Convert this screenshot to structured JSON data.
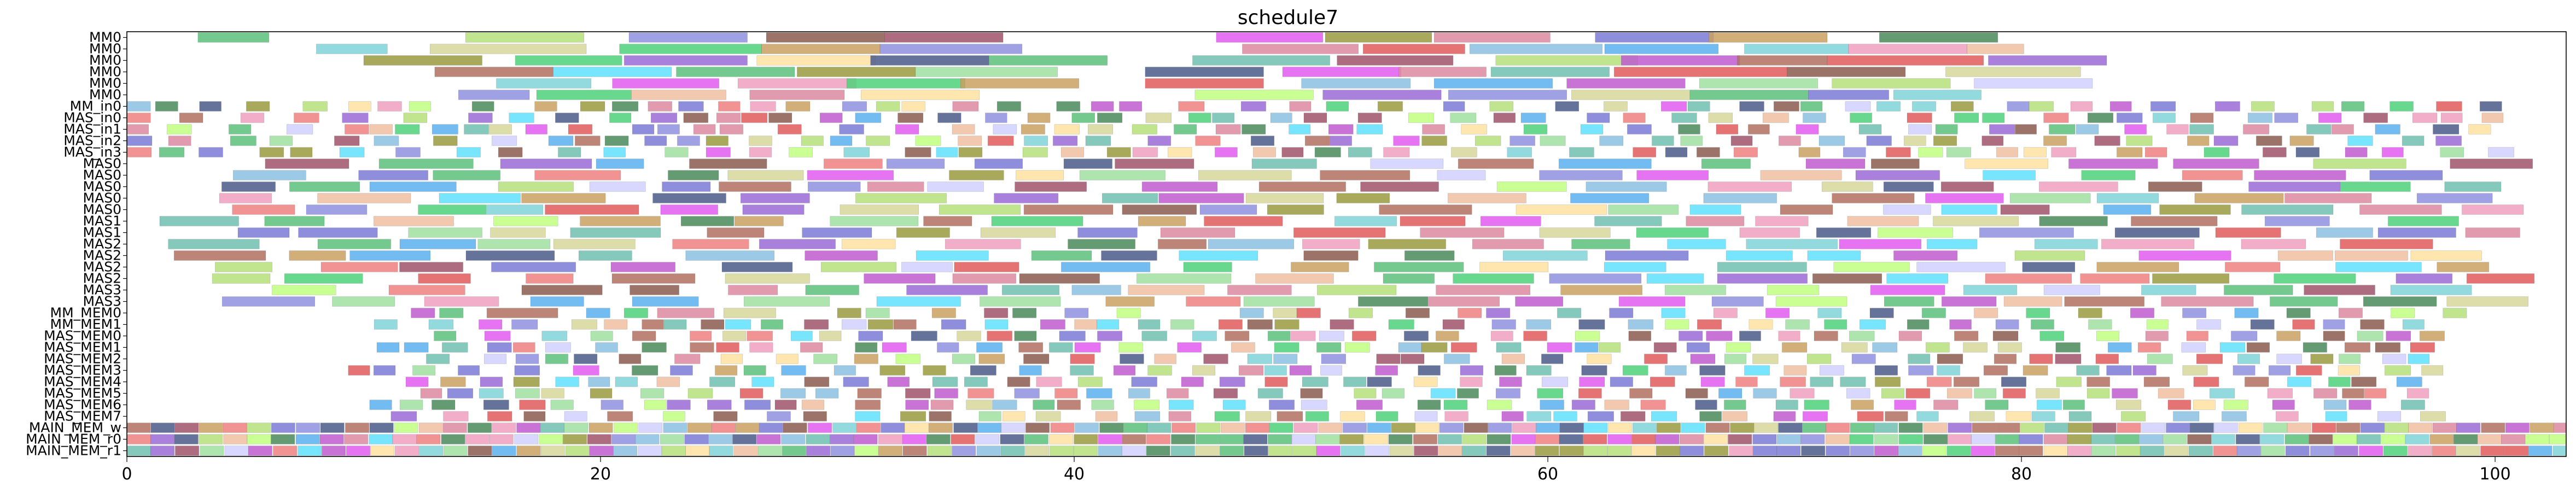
{
  "chart_data": {
    "type": "gantt",
    "title": "schedule7",
    "xlabel": "",
    "ylabel": "",
    "xlim": [
      0,
      103
    ],
    "x_ticks": [
      0,
      20,
      40,
      60,
      80,
      100
    ],
    "grid": false,
    "rows": [
      "MM0",
      "MM0",
      "MM0",
      "MM0",
      "MM0",
      "MM0",
      "MM_in0",
      "MAS_in0",
      "MAS_in1",
      "MAS_in2",
      "MAS_in3",
      "MAS0",
      "MAS0",
      "MAS0",
      "MAS0",
      "MAS0",
      "MAS1",
      "MAS1",
      "MAS2",
      "MAS2",
      "MAS2",
      "MAS2",
      "MAS3",
      "MAS3",
      "MM_MEM0",
      "MM_MEM1",
      "MAS_MEM0",
      "MAS_MEM1",
      "MAS_MEM2",
      "MAS_MEM3",
      "MAS_MEM4",
      "MAS_MEM5",
      "MAS_MEM6",
      "MAS_MEM7",
      "MAIN_MEM_w",
      "MAIN_MEM_r0",
      "MAIN_MEM_r1"
    ],
    "palette": [
      "#5cbf7a",
      "#7fd3d8",
      "#b6e07a",
      "#d6d79a",
      "#8f8fe0",
      "#8a5a4e",
      "#a0526a",
      "#e25cf0",
      "#9a9a40",
      "#dd8aa0",
      "#7a7ad6",
      "#4dd17a",
      "#caa060",
      "#4a8a5a",
      "#f0a0c0",
      "#e05a5a",
      "#8bc0e0",
      "#5ab0f0",
      "#f0c0a0",
      "#9a6ad6",
      "#ffe0a0",
      "#70c0b0",
      "#c05ad0",
      "#60e0ff",
      "#a0e0a0",
      "#d0d0ff",
      "#4a5a8a",
      "#f08080",
      "#c0ff80",
      "#b07060"
    ],
    "tasks": [
      {
        "r": 0,
        "s": 3.0,
        "d": 3.0,
        "c": 0
      },
      {
        "r": 0,
        "s": 14.3,
        "d": 5.0,
        "c": 2
      },
      {
        "r": 0,
        "s": 21.2,
        "d": 5.0,
        "c": 4
      },
      {
        "r": 0,
        "s": 27.0,
        "d": 5.0,
        "c": 5
      },
      {
        "r": 0,
        "s": 32.0,
        "d": 5.0,
        "c": 6
      },
      {
        "r": 0,
        "s": 46.0,
        "d": 4.5,
        "c": 7
      },
      {
        "r": 0,
        "s": 50.6,
        "d": 4.5,
        "c": 8
      },
      {
        "r": 0,
        "s": 55.2,
        "d": 4.9,
        "c": 9
      },
      {
        "r": 0,
        "s": 62.0,
        "d": 5.0,
        "c": 10
      },
      {
        "r": 0,
        "s": 66.8,
        "d": 5.0,
        "c": 12
      },
      {
        "r": 0,
        "s": 74.0,
        "d": 5.0,
        "c": 13
      },
      {
        "r": 1,
        "s": 8.0,
        "d": 3.0,
        "c": 1
      },
      {
        "r": 1,
        "s": 12.8,
        "d": 6.6,
        "c": 3
      },
      {
        "r": 1,
        "s": 20.8,
        "d": 6.0,
        "c": 11
      },
      {
        "r": 1,
        "s": 26.8,
        "d": 5.0,
        "c": 12
      },
      {
        "r": 1,
        "s": 31.8,
        "d": 6.0,
        "c": 4
      },
      {
        "r": 1,
        "s": 47.1,
        "d": 4.9,
        "c": 9
      },
      {
        "r": 1,
        "s": 52.2,
        "d": 4.3,
        "c": 15
      },
      {
        "r": 1,
        "s": 56.7,
        "d": 5.6,
        "c": 16
      },
      {
        "r": 1,
        "s": 62.4,
        "d": 4.8,
        "c": 17
      },
      {
        "r": 1,
        "s": 68.3,
        "d": 4.4,
        "c": 1
      },
      {
        "r": 1,
        "s": 72.7,
        "d": 5.0,
        "c": 14
      },
      {
        "r": 1,
        "s": 77.7,
        "d": 2.4,
        "c": 18
      },
      {
        "r": 2,
        "s": 10.0,
        "d": 5.0,
        "c": 8
      },
      {
        "r": 2,
        "s": 16.4,
        "d": 4.5,
        "c": 11
      },
      {
        "r": 2,
        "s": 21.0,
        "d": 5.2,
        "c": 19
      },
      {
        "r": 2,
        "s": 26.6,
        "d": 5.0,
        "c": 20
      },
      {
        "r": 2,
        "s": 31.4,
        "d": 5.0,
        "c": 26
      },
      {
        "r": 2,
        "s": 36.4,
        "d": 5.0,
        "c": 0
      },
      {
        "r": 2,
        "s": 45.0,
        "d": 5.8,
        "c": 21
      },
      {
        "r": 2,
        "s": 51.1,
        "d": 4.9,
        "c": 6
      },
      {
        "r": 2,
        "s": 57.8,
        "d": 6.0,
        "c": 2
      },
      {
        "r": 2,
        "s": 63.1,
        "d": 5.0,
        "c": 22
      },
      {
        "r": 2,
        "s": 68.0,
        "d": 3.8,
        "c": 29
      },
      {
        "r": 2,
        "s": 71.8,
        "d": 6.6,
        "c": 15
      },
      {
        "r": 2,
        "s": 78.6,
        "d": 5.0,
        "c": 19
      },
      {
        "r": 3,
        "s": 13.0,
        "d": 5.0,
        "c": 29
      },
      {
        "r": 3,
        "s": 18.0,
        "d": 5.0,
        "c": 23
      },
      {
        "r": 3,
        "s": 23.2,
        "d": 5.0,
        "c": 0
      },
      {
        "r": 3,
        "s": 28.3,
        "d": 5.0,
        "c": 8
      },
      {
        "r": 3,
        "s": 33.3,
        "d": 6.0,
        "c": 24
      },
      {
        "r": 3,
        "s": 43.0,
        "d": 5.0,
        "c": 26
      },
      {
        "r": 3,
        "s": 48.8,
        "d": 5.0,
        "c": 7
      },
      {
        "r": 3,
        "s": 53.7,
        "d": 3.7,
        "c": 9
      },
      {
        "r": 3,
        "s": 57.6,
        "d": 5.0,
        "c": 21
      },
      {
        "r": 3,
        "s": 62.8,
        "d": 7.3,
        "c": 15
      },
      {
        "r": 3,
        "s": 70.1,
        "d": 5.0,
        "c": 5
      },
      {
        "r": 3,
        "s": 76.8,
        "d": 5.7,
        "c": 3
      },
      {
        "r": 4,
        "s": 15.6,
        "d": 4.0,
        "c": 1
      },
      {
        "r": 4,
        "s": 20.5,
        "d": 4.5,
        "c": 7
      },
      {
        "r": 4,
        "s": 25.8,
        "d": 5.0,
        "c": 14
      },
      {
        "r": 4,
        "s": 30.4,
        "d": 5.0,
        "c": 11
      },
      {
        "r": 4,
        "s": 35.2,
        "d": 5.0,
        "c": 12
      },
      {
        "r": 4,
        "s": 43.0,
        "d": 5.0,
        "c": 15
      },
      {
        "r": 4,
        "s": 49.6,
        "d": 4.6,
        "c": 16
      },
      {
        "r": 4,
        "s": 55.2,
        "d": 5.0,
        "c": 17
      },
      {
        "r": 4,
        "s": 60.8,
        "d": 5.0,
        "c": 22
      },
      {
        "r": 4,
        "s": 66.4,
        "d": 5.0,
        "c": 24
      },
      {
        "r": 4,
        "s": 72.0,
        "d": 5.0,
        "c": 2
      },
      {
        "r": 4,
        "s": 78.0,
        "d": 5.0,
        "c": 25
      },
      {
        "r": 5,
        "s": 14.0,
        "d": 3.0,
        "c": 4
      },
      {
        "r": 5,
        "s": 17.3,
        "d": 4.0,
        "c": 11
      },
      {
        "r": 5,
        "s": 21.3,
        "d": 4.0,
        "c": 18
      },
      {
        "r": 5,
        "s": 26.3,
        "d": 4.0,
        "c": 9
      },
      {
        "r": 5,
        "s": 31.0,
        "d": 5.0,
        "c": 20
      },
      {
        "r": 5,
        "s": 45.1,
        "d": 5.0,
        "c": 28
      },
      {
        "r": 5,
        "s": 50.5,
        "d": 5.0,
        "c": 19
      },
      {
        "r": 5,
        "s": 55.8,
        "d": 5.0,
        "c": 4
      },
      {
        "r": 5,
        "s": 61.0,
        "d": 5.0,
        "c": 3
      },
      {
        "r": 5,
        "s": 66.0,
        "d": 5.0,
        "c": 0
      },
      {
        "r": 5,
        "s": 71.0,
        "d": 3.4,
        "c": 10
      },
      {
        "r": 5,
        "s": 74.6,
        "d": 3.7,
        "c": 1
      },
      {
        "r": 24,
        "s": 12.0,
        "d": 1.0,
        "c": 22
      },
      {
        "r": 24,
        "s": 13.2,
        "d": 1.0,
        "c": 0
      },
      {
        "r": 24,
        "s": 15.2,
        "d": 3.0,
        "c": 29
      },
      {
        "r": 24,
        "s": 19.4,
        "d": 1.0,
        "c": 17
      },
      {
        "r": 24,
        "s": 21.0,
        "d": 1.0,
        "c": 11
      },
      {
        "r": 24,
        "s": 22.4,
        "d": 2.4,
        "c": 9
      },
      {
        "r": 24,
        "s": 25.2,
        "d": 2.2,
        "c": 3
      },
      {
        "r": 24,
        "s": 30.0,
        "d": 1.0,
        "c": 8
      },
      {
        "r": 24,
        "s": 31.2,
        "d": 1.0,
        "c": 24
      },
      {
        "r": 24,
        "s": 34.0,
        "d": 1.0,
        "c": 12
      },
      {
        "r": 24,
        "s": 36.2,
        "d": 1.0,
        "c": 6
      },
      {
        "r": 24,
        "s": 37.4,
        "d": 1.0,
        "c": 13
      },
      {
        "r": 24,
        "s": 39.6,
        "d": 1.0,
        "c": 4
      },
      {
        "r": 24,
        "s": 41.8,
        "d": 1.0,
        "c": 28
      },
      {
        "r": 24,
        "s": 47.0,
        "d": 1.0,
        "c": 16
      },
      {
        "r": 24,
        "s": 48.4,
        "d": 1.0,
        "c": 3
      },
      {
        "r": 24,
        "s": 49.4,
        "d": 1.0,
        "c": 15
      },
      {
        "r": 24,
        "s": 51.6,
        "d": 1.0,
        "c": 2
      },
      {
        "r": 24,
        "s": 54.0,
        "d": 1.0,
        "c": 5
      },
      {
        "r": 24,
        "s": 56.2,
        "d": 1.0,
        "c": 27
      },
      {
        "r": 24,
        "s": 57.4,
        "d": 1.0,
        "c": 19
      },
      {
        "r": 24,
        "s": 60.4,
        "d": 1.0,
        "c": 21
      },
      {
        "r": 24,
        "s": 62.6,
        "d": 1.0,
        "c": 10
      },
      {
        "r": 24,
        "s": 64.8,
        "d": 1.0,
        "c": 23
      },
      {
        "r": 24,
        "s": 67.0,
        "d": 1.0,
        "c": 14
      },
      {
        "r": 24,
        "s": 69.2,
        "d": 1.0,
        "c": 7
      },
      {
        "r": 24,
        "s": 71.4,
        "d": 1.0,
        "c": 1
      },
      {
        "r": 24,
        "s": 73.6,
        "d": 1.0,
        "c": 26
      },
      {
        "r": 24,
        "s": 75.8,
        "d": 1.0,
        "c": 0
      },
      {
        "r": 24,
        "s": 78.0,
        "d": 1.0,
        "c": 18
      },
      {
        "r": 24,
        "s": 80.2,
        "d": 1.0,
        "c": 11
      },
      {
        "r": 24,
        "s": 82.4,
        "d": 1.0,
        "c": 8
      },
      {
        "r": 24,
        "s": 84.6,
        "d": 1.0,
        "c": 22
      },
      {
        "r": 24,
        "s": 86.8,
        "d": 1.0,
        "c": 4
      },
      {
        "r": 24,
        "s": 89.0,
        "d": 1.0,
        "c": 17
      },
      {
        "r": 24,
        "s": 91.2,
        "d": 1.0,
        "c": 13
      },
      {
        "r": 24,
        "s": 93.4,
        "d": 1.0,
        "c": 9
      },
      {
        "r": 24,
        "s": 95.6,
        "d": 1.0,
        "c": 28
      },
      {
        "r": 24,
        "s": 97.8,
        "d": 1.0,
        "c": 2
      }
    ]
  }
}
